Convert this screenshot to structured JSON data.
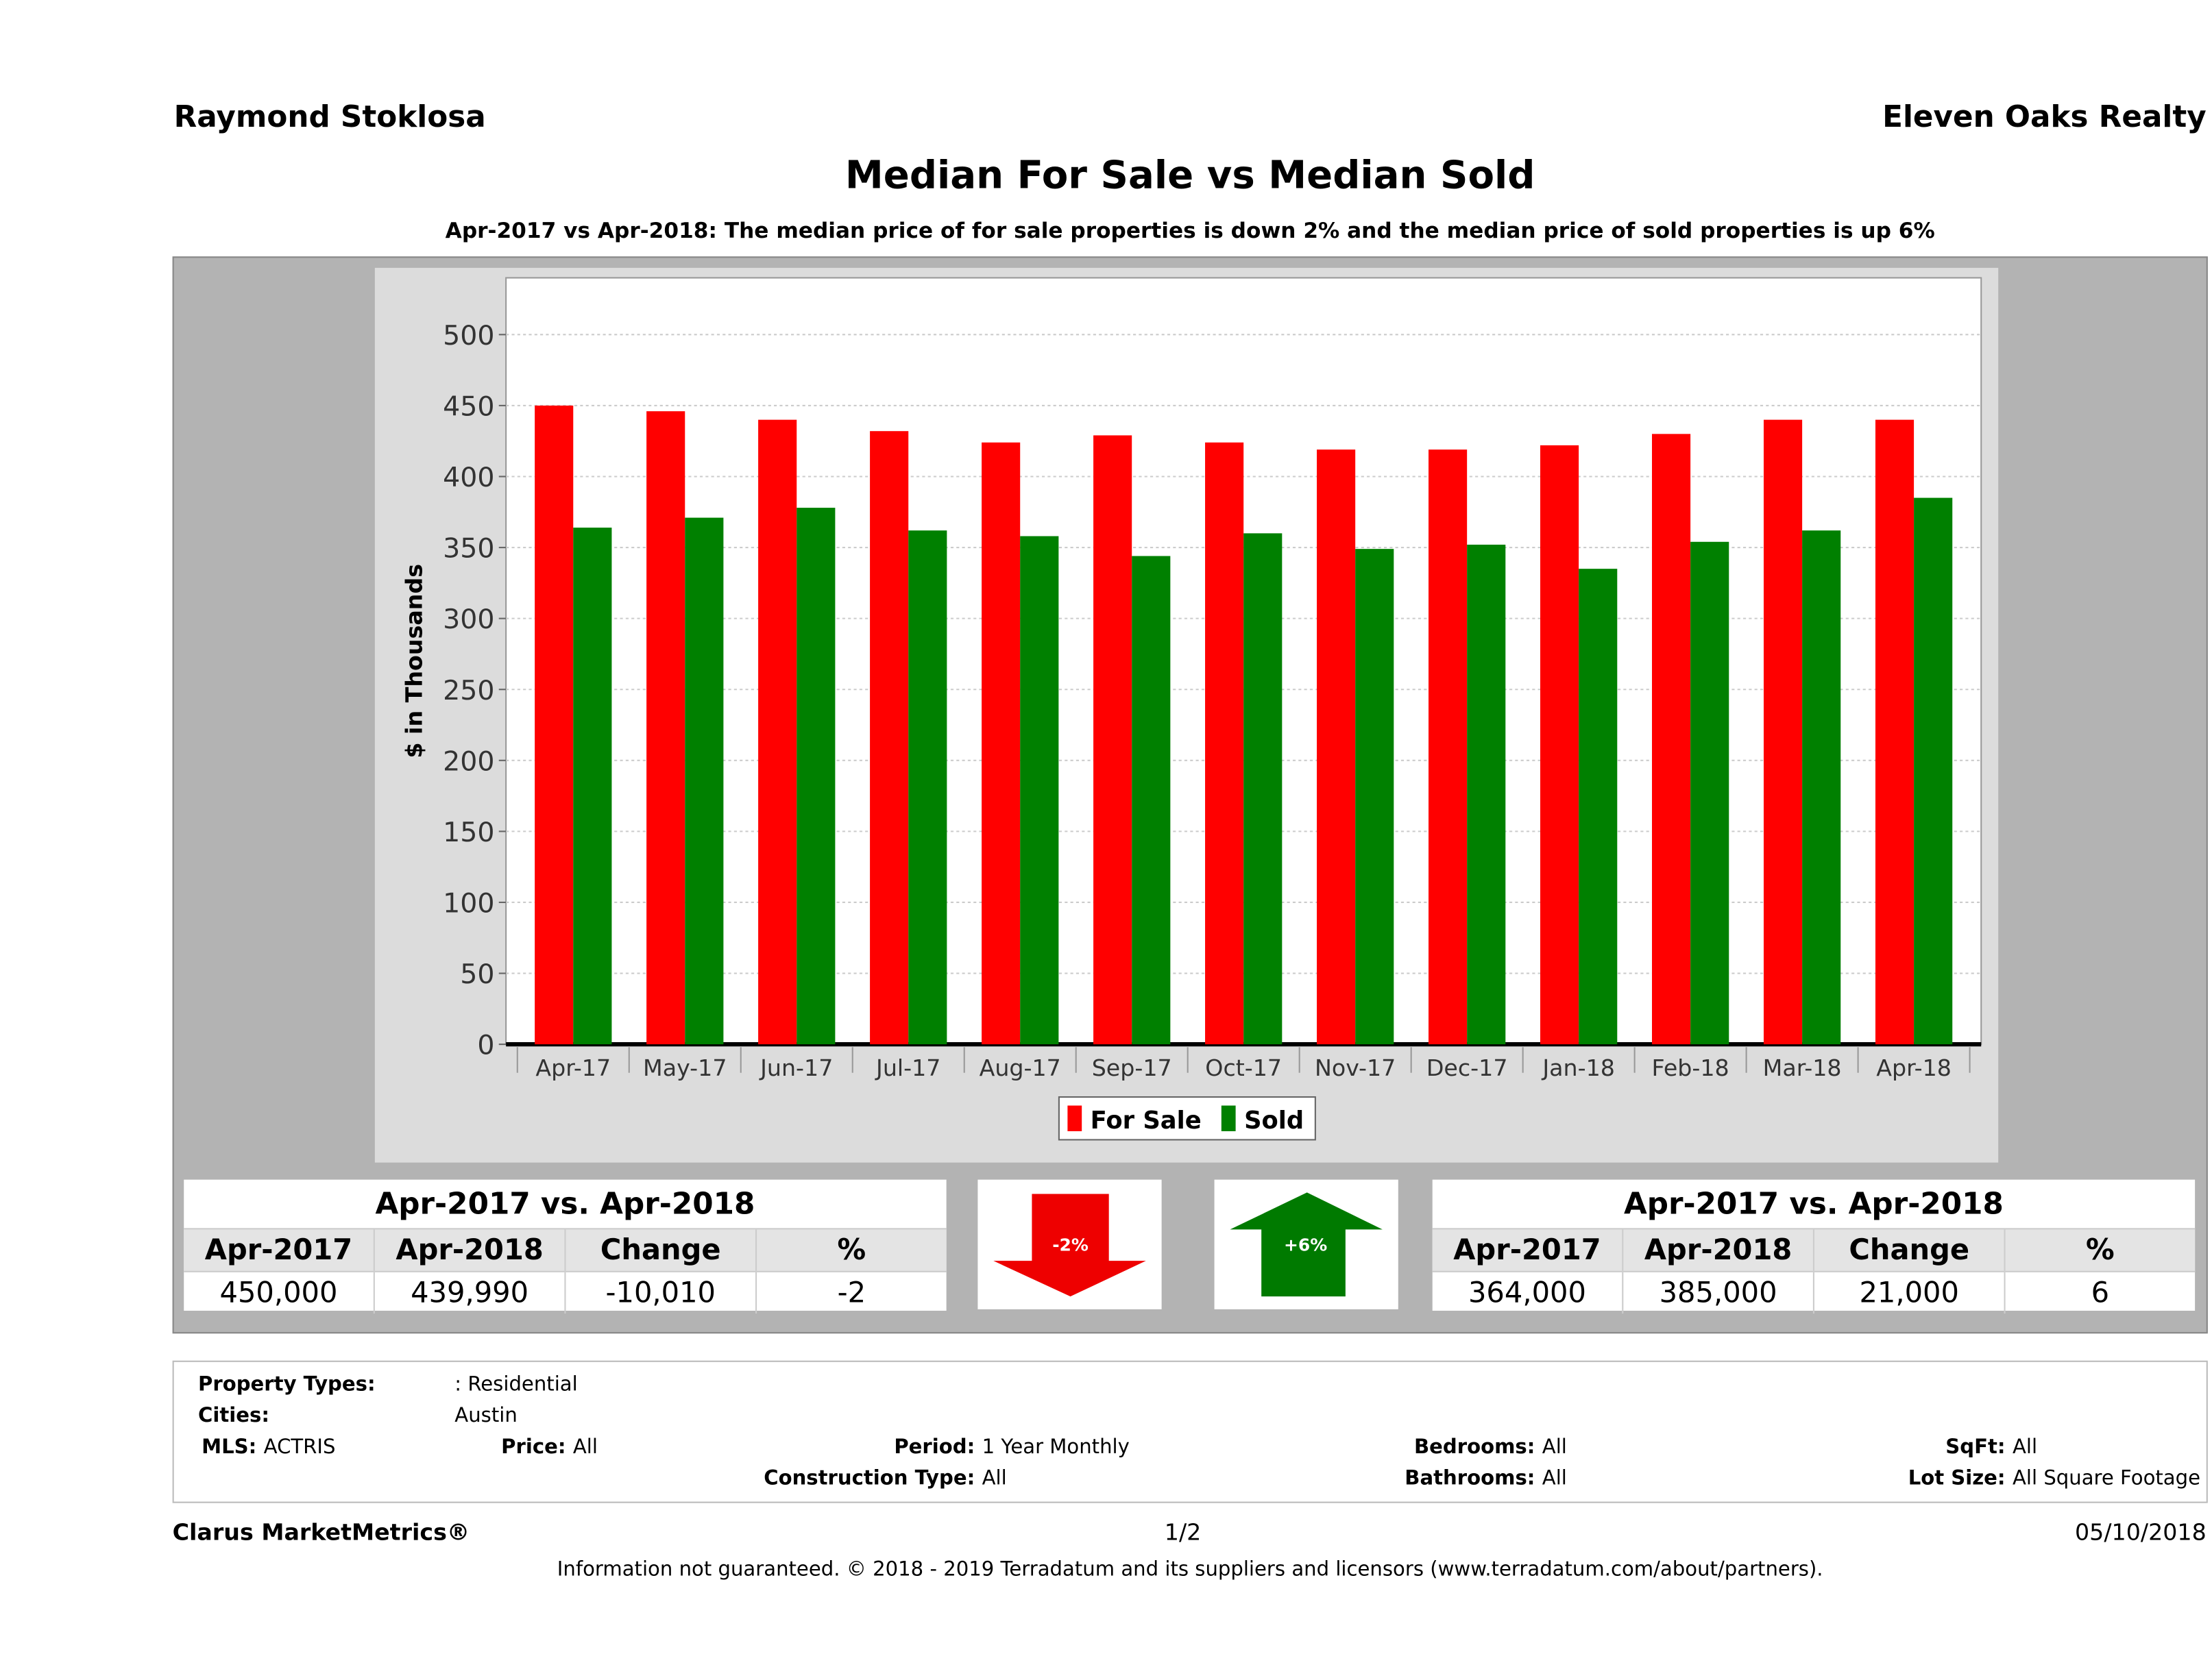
{
  "header": {
    "agent": "Raymond Stoklosa",
    "brokerage": "Eleven Oaks Realty"
  },
  "title": "Median For Sale vs Median Sold",
  "subtitle": "Apr-2017 vs Apr-2018: The median price of for sale properties is down 2% and the median price of sold properties is up 6%",
  "colors": {
    "for_sale": "#ff0000",
    "sold": "#008000"
  },
  "chart_data": {
    "type": "bar",
    "ylabel": "$ in Thousands",
    "ylim": [
      0,
      540
    ],
    "yticks": [
      0,
      50,
      100,
      150,
      200,
      250,
      300,
      350,
      400,
      450,
      500
    ],
    "grid": true,
    "legend_position": "bottom",
    "categories": [
      "Apr-17",
      "May-17",
      "Jun-17",
      "Jul-17",
      "Aug-17",
      "Sep-17",
      "Oct-17",
      "Nov-17",
      "Dec-17",
      "Jan-18",
      "Feb-18",
      "Mar-18",
      "Apr-18"
    ],
    "series": [
      {
        "name": "For Sale",
        "values": [
          450,
          446,
          440,
          432,
          424,
          429,
          424,
          419,
          419,
          422,
          430,
          440,
          440
        ]
      },
      {
        "name": "Sold",
        "values": [
          364,
          371,
          378,
          362,
          358,
          344,
          360,
          349,
          352,
          335,
          354,
          362,
          385
        ]
      }
    ]
  },
  "left_table": {
    "caption": "Apr-2017 vs. Apr-2018",
    "headers": [
      "Apr-2017",
      "Apr-2018",
      "Change",
      "%"
    ],
    "values": [
      "450,000",
      "439,990",
      "-10,010",
      "-2"
    ]
  },
  "right_table": {
    "caption": "Apr-2017 vs. Apr-2018",
    "headers": [
      "Apr-2017",
      "Apr-2018",
      "Change",
      "%"
    ],
    "values": [
      "364,000",
      "385,000",
      "21,000",
      "6"
    ]
  },
  "arrows": {
    "down_label": "-2%",
    "up_label": "+6%"
  },
  "filters": {
    "property_types_label": "Property Types:",
    "property_types": ": Residential",
    "cities_label": "Cities:",
    "cities": "Austin",
    "mls_label": "MLS:",
    "mls": "ACTRIS",
    "price_label": "Price:",
    "price": "All",
    "period_label": "Period:",
    "period": "1 Year Monthly",
    "construction_label": "Construction Type:",
    "construction": "All",
    "bedrooms_label": "Bedrooms:",
    "bedrooms": "All",
    "bathrooms_label": "Bathrooms:",
    "bathrooms": "All",
    "sqft_label": "SqFt:",
    "sqft": "All",
    "lot_label": "Lot Size:",
    "lot": "All Square Footage"
  },
  "footer": {
    "brand": "Clarus MarketMetrics®",
    "page": "1/2",
    "date": "05/10/2018",
    "disclaimer": "Information not guaranteed. © 2018 - 2019 Terradatum and its suppliers and licensors (www.terradatum.com/about/partners)."
  }
}
